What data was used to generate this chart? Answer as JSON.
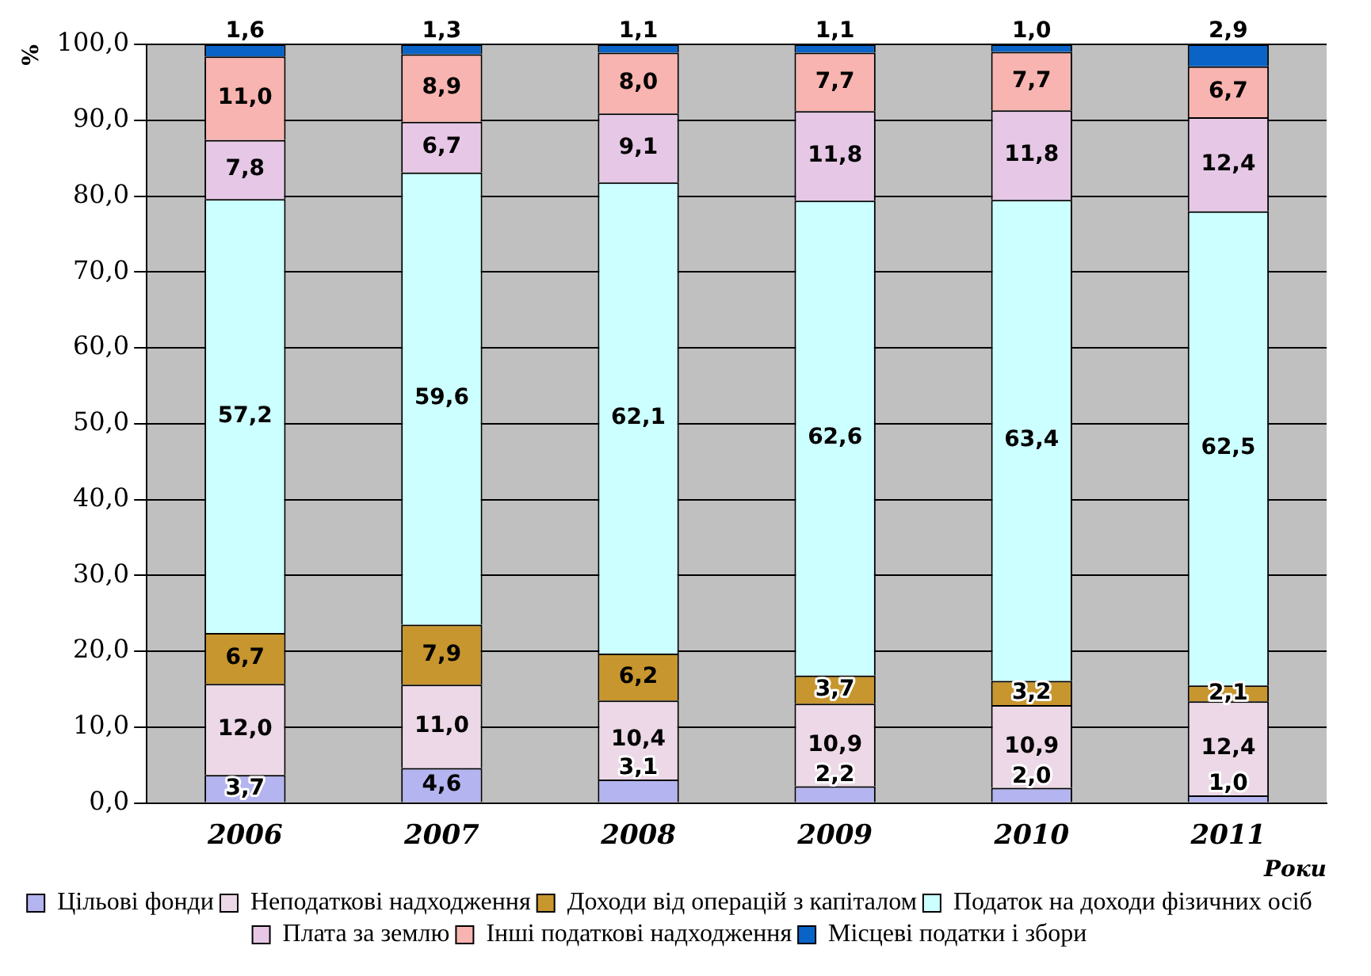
{
  "chart_data": {
    "type": "bar",
    "stacked": true,
    "categories": [
      "2006",
      "2007",
      "2008",
      "2009",
      "2010",
      "2011"
    ],
    "xlabel": "Роки",
    "ylabel": "%",
    "ylim": [
      0,
      100
    ],
    "yticks": [
      {
        "value": 0,
        "label": "0,0"
      },
      {
        "value": 10,
        "label": "10,0"
      },
      {
        "value": 20,
        "label": "20,0"
      },
      {
        "value": 30,
        "label": "30,0"
      },
      {
        "value": 40,
        "label": "40,0"
      },
      {
        "value": 50,
        "label": "50,0"
      },
      {
        "value": 60,
        "label": "60,0"
      },
      {
        "value": 70,
        "label": "70,0"
      },
      {
        "value": 80,
        "label": "80,0"
      },
      {
        "value": 90,
        "label": "90,0"
      },
      {
        "value": 100,
        "label": "100,0"
      }
    ],
    "grid": "y",
    "legend": "bottom",
    "series": [
      {
        "name": "Цільові фонди",
        "color": "#b4b4f0",
        "values": [
          3.7,
          4.6,
          3.1,
          2.2,
          2.0,
          1.0
        ],
        "value_labels": [
          "3,7",
          "4,6",
          "3,1",
          "2,2",
          "2,0",
          "1,0"
        ]
      },
      {
        "name": "Неподаткові надходження",
        "color": "#ecd8e6",
        "values": [
          12.0,
          11.0,
          10.4,
          10.9,
          10.9,
          12.4
        ],
        "value_labels": [
          "12,0",
          "11,0",
          "10,4",
          "10,9",
          "10,9",
          "12,4"
        ]
      },
      {
        "name": "Доходи від операцій з капіталом",
        "color": "#c8962e",
        "values": [
          6.7,
          7.9,
          6.2,
          3.7,
          3.2,
          2.1
        ],
        "value_labels": [
          "6,7",
          "7,9",
          "6,2",
          "3,7",
          "3,2",
          "2,1"
        ]
      },
      {
        "name": "Податок на доходи фізичних осіб",
        "color": "#ccffff",
        "values": [
          57.2,
          59.6,
          62.1,
          62.6,
          63.4,
          62.5
        ],
        "value_labels": [
          "57,2",
          "59,6",
          "62,1",
          "62,6",
          "63,4",
          "62,5"
        ]
      },
      {
        "name": "Плата за землю",
        "color": "#e6c8e6",
        "values": [
          7.8,
          6.7,
          9.1,
          11.8,
          11.8,
          12.4
        ],
        "value_labels": [
          "7,8",
          "6,7",
          "9,1",
          "11,8",
          "11,8",
          "12,4"
        ]
      },
      {
        "name": "Інші податкові надходження",
        "color": "#f8b4b0",
        "values": [
          11.0,
          8.9,
          8.0,
          7.7,
          7.7,
          6.7
        ],
        "value_labels": [
          "11,0",
          "8,9",
          "8,0",
          "7,7",
          "7,7",
          "6,7"
        ]
      },
      {
        "name": "Місцеві податки і збори",
        "color": "#0a64c8",
        "values": [
          1.6,
          1.3,
          1.1,
          1.1,
          1.0,
          2.9
        ],
        "value_labels": [
          "1,6",
          "1,3",
          "1,1",
          "1,1",
          "1,0",
          "2,9"
        ]
      }
    ]
  }
}
